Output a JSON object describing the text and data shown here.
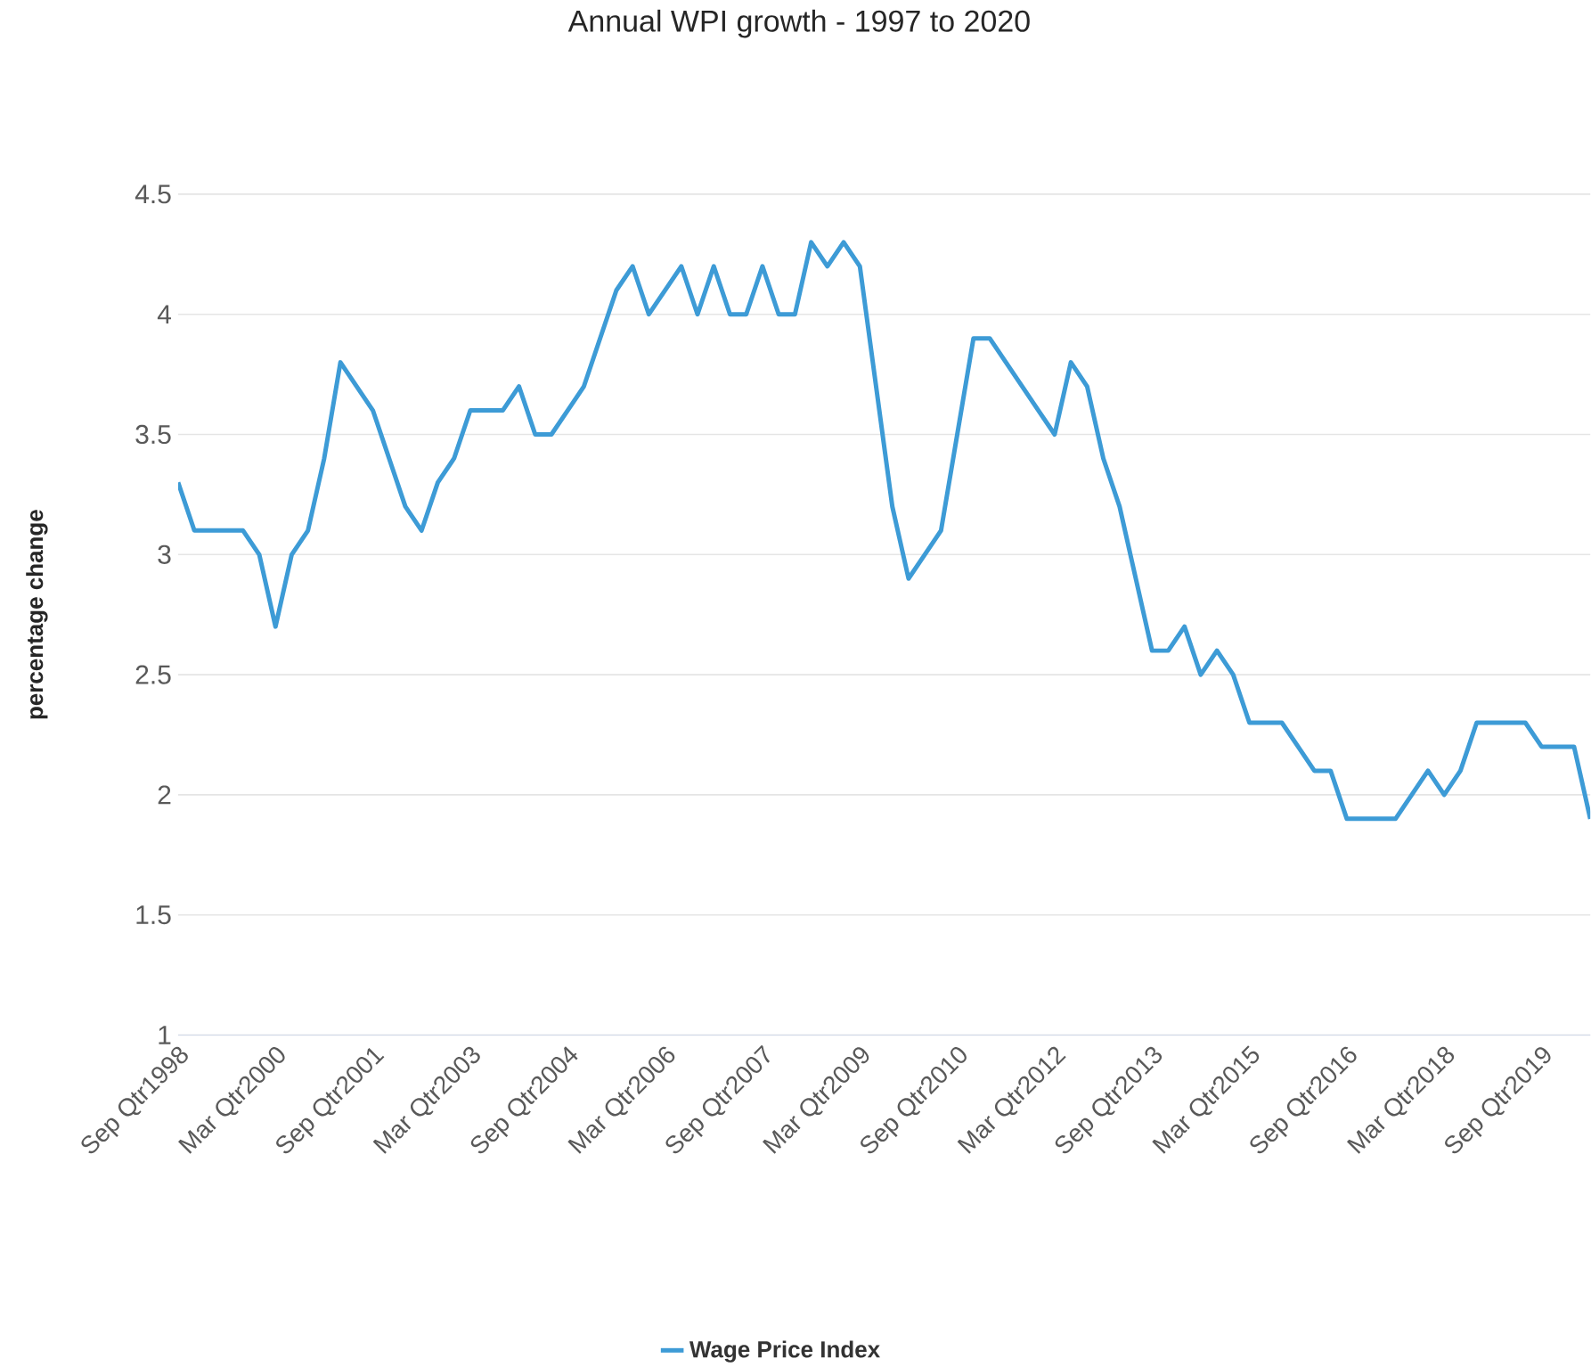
{
  "chart_data": {
    "type": "line",
    "title": "Annual WPI growth - 1997 to 2020",
    "ylabel": "percentage change",
    "categories": [
      "Sep Qtr1998",
      null,
      null,
      null,
      null,
      null,
      "Mar Qtr2000",
      null,
      null,
      null,
      null,
      null,
      "Sep Qtr2001",
      null,
      null,
      null,
      null,
      null,
      "Mar Qtr2003",
      null,
      null,
      null,
      null,
      null,
      "Sep Qtr2004",
      null,
      null,
      null,
      null,
      null,
      "Mar Qtr2006",
      null,
      null,
      null,
      null,
      null,
      "Sep Qtr2007",
      null,
      null,
      null,
      null,
      null,
      "Mar Qtr2009",
      null,
      null,
      null,
      null,
      null,
      "Sep Qtr2010",
      null,
      null,
      null,
      null,
      null,
      "Mar Qtr2012",
      null,
      null,
      null,
      null,
      null,
      "Sep Qtr2013",
      null,
      null,
      null,
      null,
      null,
      "Mar Qtr2015",
      null,
      null,
      null,
      null,
      null,
      "Sep Qtr2016",
      null,
      null,
      null,
      null,
      null,
      "Mar Qtr2018",
      null,
      null,
      null,
      null,
      null,
      "Sep Qtr2019",
      null,
      null,
      null
    ],
    "series": [
      {
        "name": "Wage Price Index",
        "color": "#3d9bd6",
        "values": [
          3.3,
          3.1,
          3.1,
          3.1,
          3.1,
          3.0,
          2.7,
          3.0,
          3.1,
          3.4,
          3.8,
          3.7,
          3.6,
          3.4,
          3.2,
          3.1,
          3.3,
          3.4,
          3.6,
          3.6,
          3.6,
          3.7,
          3.5,
          3.5,
          3.6,
          3.7,
          3.9,
          4.1,
          4.2,
          4.0,
          4.1,
          4.2,
          4.0,
          4.2,
          4.0,
          4.0,
          4.2,
          4.0,
          4.0,
          4.3,
          4.2,
          4.3,
          4.2,
          3.7,
          3.2,
          2.9,
          3.0,
          3.1,
          3.5,
          3.9,
          3.9,
          3.8,
          3.7,
          3.6,
          3.5,
          3.8,
          3.7,
          3.4,
          3.2,
          2.9,
          2.6,
          2.6,
          2.7,
          2.5,
          2.6,
          2.5,
          2.3,
          2.3,
          2.3,
          2.2,
          2.1,
          2.1,
          1.9,
          1.9,
          1.9,
          1.9,
          2.0,
          2.1,
          2.0,
          2.1,
          2.3,
          2.3,
          2.3,
          2.3,
          2.2,
          2.2,
          2.2,
          1.9
        ]
      }
    ],
    "ylim": [
      1,
      4.5
    ],
    "yticks": [
      1,
      1.5,
      2,
      2.5,
      3,
      3.5,
      4,
      4.5
    ],
    "grid": "y",
    "legend": "bottom"
  }
}
